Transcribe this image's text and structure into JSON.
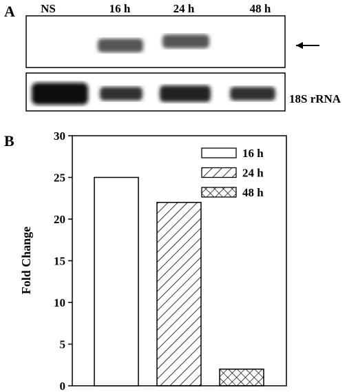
{
  "figure": {
    "panel_a": {
      "label": "A",
      "lanes": [
        "NS",
        "16 h",
        "24 h",
        "48 h"
      ],
      "lower_blot_label": "18S rRNA"
    },
    "panel_b": {
      "label": "B"
    }
  },
  "chart_data": {
    "type": "bar",
    "y_label": "Fold Change",
    "categories": [
      null
    ],
    "series": [
      {
        "name": "16 h",
        "color": "#000000",
        "pattern": "none",
        "values": [
          25
        ]
      },
      {
        "name": "24 h",
        "color": "#000000",
        "pattern": "diagonal",
        "values": [
          22
        ]
      },
      {
        "name": "48 h",
        "color": "#000000",
        "pattern": "crosshatch",
        "values": [
          2
        ]
      }
    ],
    "ylim": [
      0,
      30
    ],
    "yticks": [
      0,
      5,
      10,
      15,
      20,
      25,
      30
    ],
    "legend": "upper right"
  }
}
